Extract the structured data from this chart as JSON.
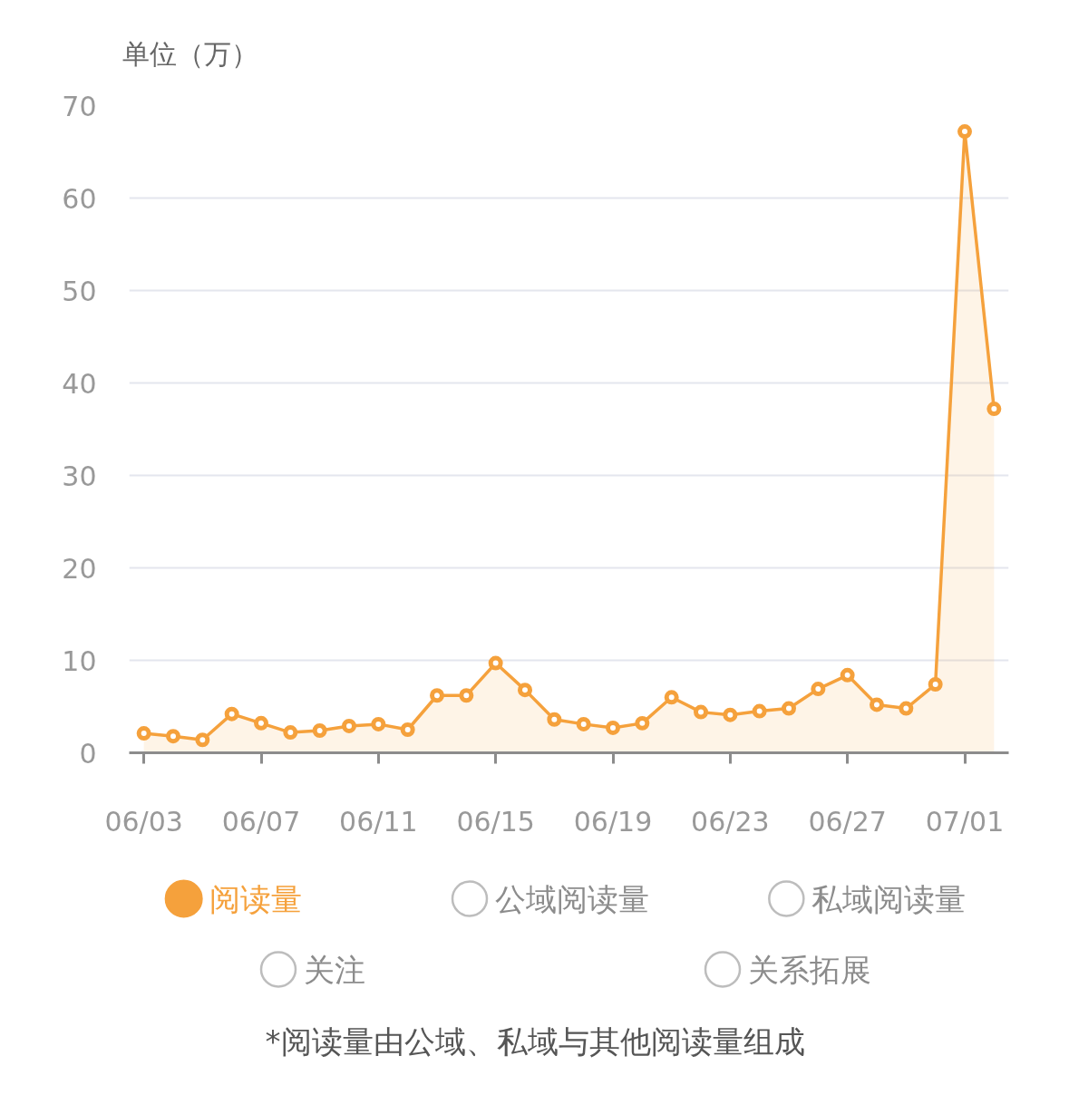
{
  "chart_data": {
    "type": "area",
    "ylabel": "单位（万）",
    "categories": [
      "06/03",
      null,
      null,
      null,
      "06/07",
      null,
      null,
      null,
      "06/11",
      null,
      null,
      null,
      "06/15",
      null,
      null,
      null,
      "06/19",
      null,
      null,
      null,
      "06/23",
      null,
      null,
      null,
      "06/27",
      null,
      null,
      null,
      "07/01",
      null
    ],
    "series": [
      {
        "name": "阅读量",
        "color": "#f5a13c",
        "values": [
          2.1,
          1.8,
          1.4,
          4.2,
          3.2,
          2.2,
          2.4,
          2.9,
          3.1,
          2.5,
          6.2,
          6.2,
          9.7,
          6.8,
          3.6,
          3.1,
          2.7,
          3.2,
          6.0,
          4.4,
          4.1,
          4.5,
          4.8,
          6.9,
          8.4,
          5.2,
          4.8,
          7.4,
          67.2,
          37.2
        ]
      },
      {
        "name": "公域阅读量",
        "color": "#bdbdbd",
        "values": [
          null,
          null,
          null,
          null,
          null,
          null,
          null,
          null,
          null,
          null,
          null,
          null,
          null,
          null,
          null,
          null,
          null,
          null,
          null,
          null,
          null,
          null,
          null,
          null,
          null,
          null,
          null,
          null,
          null,
          null
        ]
      },
      {
        "name": "私域阅读量",
        "color": "#bdbdbd",
        "values": [
          null,
          null,
          null,
          null,
          null,
          null,
          null,
          null,
          null,
          null,
          null,
          null,
          null,
          null,
          null,
          null,
          null,
          null,
          null,
          null,
          null,
          null,
          null,
          null,
          null,
          null,
          null,
          null,
          null,
          null
        ]
      },
      {
        "name": "关注",
        "color": "#bdbdbd",
        "values": [
          null,
          null,
          null,
          null,
          null,
          null,
          null,
          null,
          null,
          null,
          null,
          null,
          null,
          null,
          null,
          null,
          null,
          null,
          null,
          null,
          null,
          null,
          null,
          null,
          null,
          null,
          null,
          null,
          null,
          null
        ]
      },
      {
        "name": "关系拓展",
        "color": "#bdbdbd",
        "values": [
          null,
          null,
          null,
          null,
          null,
          null,
          null,
          null,
          null,
          null,
          null,
          null,
          null,
          null,
          null,
          null,
          null,
          null,
          null,
          null,
          null,
          null,
          null,
          null,
          null,
          null,
          null,
          null,
          null,
          null
        ]
      }
    ],
    "ylim": [
      0,
      70
    ],
    "yticks": [
      0,
      10,
      20,
      30,
      40,
      50,
      60,
      70
    ],
    "grid": "y",
    "legend": "bottom",
    "marker": "circle",
    "annotations": [
      "*阅读量由公域、私域与其他阅读量组成"
    ]
  }
}
